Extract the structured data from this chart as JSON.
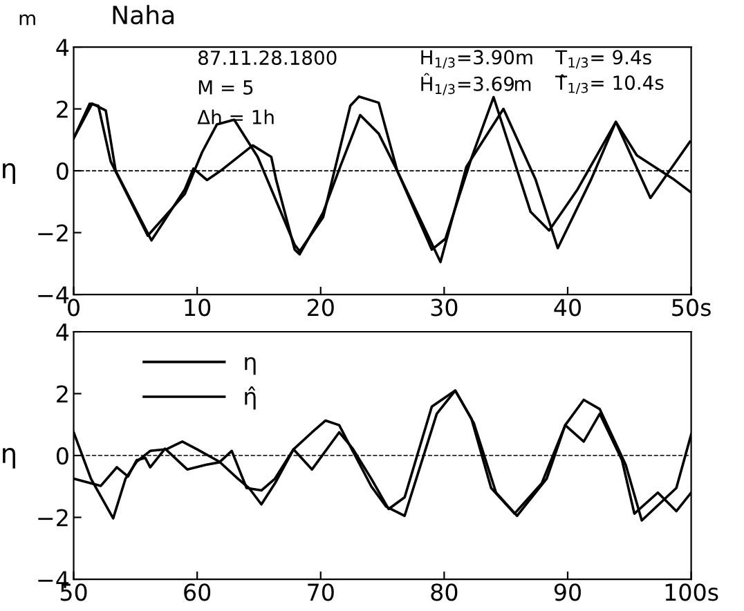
{
  "chart_data": [
    {
      "type": "line",
      "title": "Naha",
      "ylabel": "η",
      "xlim": [
        0,
        50
      ],
      "ylim": [
        -4,
        4
      ],
      "xticks": [
        0,
        10,
        20,
        30,
        40,
        {
          "value": 50,
          "label": "50s"
        }
      ],
      "yticks": [
        -4,
        -2,
        0,
        2,
        4
      ],
      "grid": false,
      "legend": false,
      "line_style": "solid",
      "ref_lines": [
        {
          "axis": "y",
          "value": 0,
          "line_style": "dashed",
          "color": "#000000"
        }
      ],
      "annotations": [
        "m",
        "87.11.28.1800",
        "M = 5",
        "Δh = 1h",
        "H$_{1/3}$=3.90m",
        "Ĥ$_{1/3}$=3.69m",
        "T$_{1/3}$= 9.4s",
        "T̂$_{1/3}$= 10.4s"
      ],
      "series": [
        {
          "color": "#000000",
          "x": [
            0,
            1.5,
            2.6,
            3.4,
            6.3,
            9.0,
            9.7,
            10.8,
            11.9,
            14.5,
            16.0,
            16.4,
            17.9,
            18.3,
            20.2,
            21.6,
            23.2,
            24.7,
            26.2,
            29.7,
            31.8,
            34.8,
            37.4,
            39.2,
            41.9,
            43.9,
            45.6,
            48.6,
            50
          ],
          "values": [
            1.05,
            2.17,
            1.95,
            0,
            -2.25,
            -0.6,
            0.07,
            -0.3,
            0,
            0.82,
            0.45,
            -0.3,
            -2.55,
            -2.7,
            -1.35,
            0.15,
            1.8,
            1.2,
            0,
            -2.95,
            0.13,
            2.0,
            -0.28,
            -2.5,
            -0.28,
            1.58,
            0.5,
            -0.28,
            -0.7
          ]
        },
        {
          "color": "#000000",
          "x": [
            0,
            1.3,
            2.0,
            3.0,
            6.0,
            9.0,
            10.4,
            11.6,
            13.0,
            14.9,
            17.9,
            18.3,
            20.2,
            22.4,
            23.1,
            24.7,
            26.2,
            29.0,
            30.1,
            32.2,
            34.0,
            37.0,
            38.5,
            40.8,
            43.9,
            46.7,
            49.9
          ],
          "values": [
            1.05,
            2.17,
            2.1,
            0.3,
            -2.1,
            -0.75,
            0.6,
            1.5,
            1.65,
            0.45,
            -2.4,
            -2.6,
            -1.5,
            2.1,
            2.4,
            2.2,
            0,
            -2.55,
            -2.2,
            0.4,
            2.38,
            -1.33,
            -1.93,
            -0.6,
            1.58,
            -0.88,
            0.94
          ]
        }
      ]
    },
    {
      "type": "line",
      "ylabel": "η",
      "xlim": [
        50,
        100
      ],
      "ylim": [
        -4,
        4
      ],
      "xticks": [
        50,
        60,
        70,
        80,
        90,
        {
          "value": 100,
          "label": "100s"
        }
      ],
      "yticks": [
        -4,
        -2,
        0,
        2,
        4
      ],
      "grid": false,
      "legend": "top left",
      "line_style": "solid",
      "ref_lines": [
        {
          "axis": "y",
          "value": 0,
          "line_style": "dashed",
          "color": "#000000"
        }
      ],
      "series": [
        {
          "name": "η",
          "color": "#000000",
          "x": [
            50,
            51.4,
            53.2,
            54.2,
            55.1,
            56.2,
            57.5,
            58.8,
            60,
            61.8,
            63.3,
            64.2,
            65.2,
            66.3,
            67.8,
            69.3,
            70.4,
            71.5,
            74.1,
            75.3,
            76.8,
            79.4,
            80.9,
            82.4,
            84.2,
            85.9,
            88.3,
            89.8,
            91.3,
            92.6,
            94.7,
            96.0,
            98.8,
            100
          ],
          "values": [
            0.75,
            -0.75,
            -2.03,
            -0.75,
            -0.2,
            0.15,
            0.2,
            0.45,
            0.2,
            -0.2,
            -0.75,
            -1.05,
            -1.58,
            -0.9,
            0.2,
            0.75,
            1.13,
            0.98,
            -1.0,
            -1.65,
            -1.95,
            1.35,
            2.1,
            1.05,
            -1.2,
            -1.95,
            -0.75,
            0.98,
            1.8,
            1.5,
            -0.3,
            -2.1,
            -1.05,
            0.68
          ]
        },
        {
          "name": "η̂",
          "color": "#000000",
          "x": [
            50,
            52.2,
            53.5,
            54.4,
            55.1,
            55.8,
            56.2,
            57.4,
            59.2,
            60.7,
            61.8,
            62.8,
            64.0,
            65.2,
            66.3,
            67.8,
            69.3,
            71.5,
            72.6,
            74.1,
            75.5,
            76.8,
            79.0,
            80.9,
            82.2,
            83.8,
            85.7,
            87.9,
            89.8,
            91.3,
            92.6,
            94.4,
            95.4,
            97.3,
            98.8,
            100
          ],
          "values": [
            -0.75,
            -0.98,
            -0.38,
            -0.68,
            -0.15,
            -0.08,
            -0.38,
            0.22,
            -0.45,
            -0.3,
            -0.22,
            0.15,
            -1.05,
            -1.13,
            -0.75,
            0.2,
            -0.45,
            0.75,
            0.22,
            -0.75,
            -1.73,
            -1.35,
            1.58,
            2.1,
            1.2,
            -1.05,
            -1.88,
            -0.9,
            0.98,
            0.45,
            1.35,
            -0.15,
            -1.88,
            -1.2,
            -1.8,
            -1.2
          ]
        }
      ]
    }
  ]
}
